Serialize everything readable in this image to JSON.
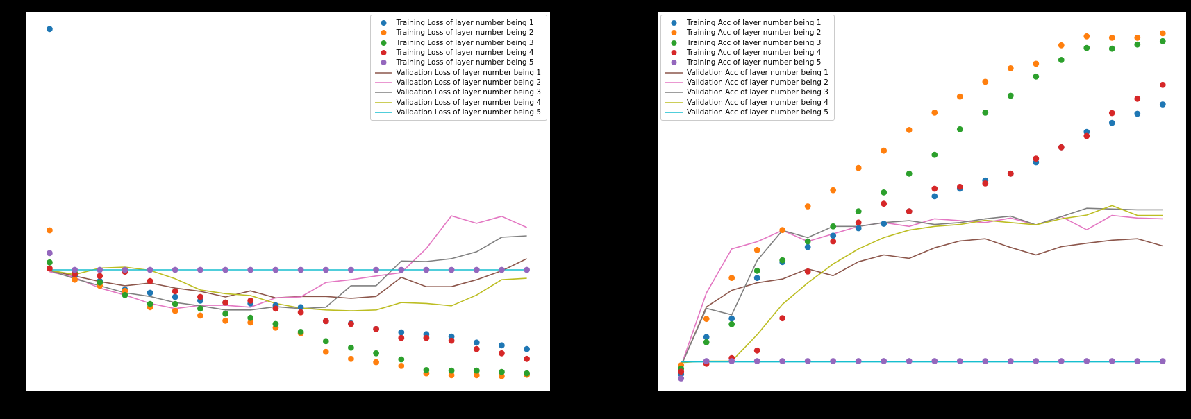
{
  "figure": {
    "background_color": "#000000",
    "plot_background_color": "#ffffff",
    "axis_spine_color": "#000000",
    "tick_labels_visible": false,
    "title": "",
    "xlabel": "",
    "ylabel": ""
  },
  "chart_data": [
    {
      "id": "training-validation-loss",
      "type": "scatter+line",
      "title": "",
      "xlabel": "",
      "ylabel": "",
      "legend_position": "upper right",
      "grid": false,
      "x": [
        0,
        1,
        2,
        3,
        4,
        5,
        6,
        7,
        8,
        9,
        10,
        11,
        12,
        13,
        14,
        15,
        16,
        17,
        18,
        19
      ],
      "ylim": [
        -0.32,
        7.84
      ],
      "xlim": [
        -0.95,
        19.95
      ],
      "series": [
        {
          "name": "Training Loss of layer number being 1",
          "type": "scatter",
          "color": "#1f77b4",
          "values": [
            7.47,
            2.18,
            2.06,
            1.88,
            1.81,
            1.72,
            1.64,
            1.6,
            1.58,
            1.54,
            1.5,
            1.2,
            1.15,
            1.03,
            0.96,
            0.92,
            0.87,
            0.74,
            0.68,
            0.6
          ]
        },
        {
          "name": "Training Loss of layer number being 2",
          "type": "scatter",
          "color": "#ff7f0e",
          "values": [
            3.15,
            2.09,
            1.96,
            1.85,
            1.5,
            1.42,
            1.32,
            1.21,
            1.17,
            1.06,
            0.94,
            0.54,
            0.39,
            0.32,
            0.24,
            0.08,
            0.04,
            0.04,
            0.02,
            0.05
          ]
        },
        {
          "name": "Training Loss of layer number being 3",
          "type": "scatter",
          "color": "#2ca02c",
          "values": [
            2.46,
            2.24,
            2.03,
            1.76,
            1.57,
            1.57,
            1.47,
            1.36,
            1.27,
            1.14,
            0.97,
            0.77,
            0.63,
            0.51,
            0.38,
            0.15,
            0.14,
            0.14,
            0.11,
            0.08
          ]
        },
        {
          "name": "Training Loss of layer number being 4",
          "type": "scatter",
          "color": "#d62728",
          "values": [
            2.33,
            2.21,
            2.17,
            2.26,
            2.06,
            1.84,
            1.72,
            1.6,
            1.64,
            1.47,
            1.39,
            1.2,
            1.14,
            1.03,
            0.84,
            0.84,
            0.78,
            0.6,
            0.51,
            0.39
          ]
        },
        {
          "name": "Training Loss of layer number being 5",
          "type": "scatter",
          "color": "#9467bd",
          "values": [
            2.66,
            2.3,
            2.3,
            2.3,
            2.3,
            2.3,
            2.3,
            2.3,
            2.3,
            2.3,
            2.3,
            2.3,
            2.3,
            2.3,
            2.3,
            2.3,
            2.3,
            2.3,
            2.3,
            2.3
          ]
        },
        {
          "name": "Validation Loss of layer number being 1",
          "type": "line",
          "color": "#8c564b",
          "values": [
            2.29,
            2.17,
            2.05,
            1.96,
            2.02,
            1.91,
            1.84,
            1.72,
            1.85,
            1.7,
            1.73,
            1.73,
            1.69,
            1.73,
            2.14,
            1.94,
            1.94,
            2.09,
            2.28,
            2.54
          ]
        },
        {
          "name": "Validation Loss of layer number being 2",
          "type": "line",
          "color": "#e377c2",
          "values": [
            2.26,
            2.14,
            1.91,
            1.76,
            1.58,
            1.47,
            1.54,
            1.54,
            1.5,
            1.7,
            1.72,
            2.03,
            2.09,
            2.17,
            2.24,
            2.76,
            3.46,
            3.3,
            3.45,
            3.21
          ]
        },
        {
          "name": "Validation Loss of layer number being 3",
          "type": "line",
          "color": "#7f7f7f",
          "values": [
            2.29,
            2.11,
            1.96,
            1.81,
            1.73,
            1.6,
            1.53,
            1.44,
            1.44,
            1.51,
            1.47,
            1.5,
            1.96,
            1.96,
            2.49,
            2.48,
            2.54,
            2.69,
            3.0,
            3.03
          ]
        },
        {
          "name": "Validation Loss of layer number being 4",
          "type": "line",
          "color": "#bcbd22",
          "values": [
            2.29,
            2.2,
            2.34,
            2.36,
            2.29,
            2.11,
            1.87,
            1.79,
            1.75,
            1.58,
            1.48,
            1.44,
            1.42,
            1.44,
            1.6,
            1.58,
            1.53,
            1.76,
            2.09,
            2.12
          ]
        },
        {
          "name": "Validation Loss of layer number being 5",
          "type": "line",
          "color": "#17becf",
          "values": [
            2.3,
            2.3,
            2.3,
            2.3,
            2.3,
            2.3,
            2.3,
            2.3,
            2.3,
            2.3,
            2.3,
            2.3,
            2.3,
            2.3,
            2.3,
            2.3,
            2.3,
            2.3,
            2.3,
            2.3
          ]
        }
      ]
    },
    {
      "id": "training-validation-accuracy",
      "type": "scatter+line",
      "title": "",
      "xlabel": "",
      "ylabel": "",
      "legend_position": "upper left",
      "grid": false,
      "x": [
        0,
        1,
        2,
        3,
        4,
        5,
        6,
        7,
        8,
        9,
        10,
        11,
        12,
        13,
        14,
        15,
        16,
        17,
        18,
        19
      ],
      "ylim": [
        0.02,
        1.03
      ],
      "xlim": [
        -0.95,
        19.95
      ],
      "series": [
        {
          "name": "Training Acc of layer number being 1",
          "type": "scatter",
          "color": "#1f77b4",
          "values": [
            0.067,
            0.166,
            0.215,
            0.323,
            0.365,
            0.405,
            0.435,
            0.455,
            0.467,
            0.5,
            0.54,
            0.56,
            0.582,
            0.6,
            0.63,
            0.67,
            0.711,
            0.735,
            0.759,
            0.784
          ]
        },
        {
          "name": "Training Acc of layer number being 2",
          "type": "scatter",
          "color": "#ff7f0e",
          "values": [
            0.091,
            0.214,
            0.323,
            0.397,
            0.45,
            0.513,
            0.556,
            0.615,
            0.661,
            0.716,
            0.762,
            0.805,
            0.844,
            0.88,
            0.892,
            0.941,
            0.965,
            0.961,
            0.961,
            0.973
          ]
        },
        {
          "name": "Training Acc of layer number being 3",
          "type": "scatter",
          "color": "#2ca02c",
          "values": [
            0.082,
            0.152,
            0.2,
            0.342,
            0.37,
            0.42,
            0.46,
            0.5,
            0.55,
            0.6,
            0.65,
            0.718,
            0.762,
            0.807,
            0.858,
            0.902,
            0.934,
            0.932,
            0.943,
            0.952
          ]
        },
        {
          "name": "Training Acc of layer number being 4",
          "type": "scatter",
          "color": "#d62728",
          "values": [
            0.074,
            0.095,
            0.11,
            0.13,
            0.216,
            0.34,
            0.42,
            0.47,
            0.52,
            0.5,
            0.56,
            0.565,
            0.574,
            0.6,
            0.64,
            0.67,
            0.7,
            0.761,
            0.799,
            0.836
          ]
        },
        {
          "name": "Training Acc of layer number being 5",
          "type": "scatter",
          "color": "#9467bd",
          "values": [
            0.056,
            0.102,
            0.102,
            0.102,
            0.102,
            0.102,
            0.102,
            0.102,
            0.102,
            0.102,
            0.102,
            0.102,
            0.102,
            0.102,
            0.102,
            0.102,
            0.102,
            0.102,
            0.102,
            0.102
          ]
        },
        {
          "name": "Validation Acc of layer number being 1",
          "type": "line",
          "color": "#8c564b",
          "values": [
            0.089,
            0.246,
            0.29,
            0.31,
            0.32,
            0.347,
            0.329,
            0.366,
            0.384,
            0.375,
            0.403,
            0.421,
            0.427,
            0.404,
            0.384,
            0.406,
            0.415,
            0.423,
            0.427,
            0.408
          ]
        },
        {
          "name": "Validation Acc of layer number being 2",
          "type": "line",
          "color": "#e377c2",
          "values": [
            0.089,
            0.283,
            0.4,
            0.419,
            0.449,
            0.42,
            0.44,
            0.46,
            0.47,
            0.46,
            0.48,
            0.475,
            0.47,
            0.482,
            0.464,
            0.486,
            0.451,
            0.489,
            0.482,
            0.48
          ]
        },
        {
          "name": "Validation Acc of layer number being 3",
          "type": "line",
          "color": "#7f7f7f",
          "values": [
            0.089,
            0.242,
            0.225,
            0.369,
            0.449,
            0.43,
            0.46,
            0.46,
            0.47,
            0.475,
            0.465,
            0.47,
            0.48,
            0.487,
            0.464,
            0.486,
            0.508,
            0.506,
            0.504,
            0.504
          ]
        },
        {
          "name": "Validation Acc of layer number being 4",
          "type": "line",
          "color": "#bcbd22",
          "values": [
            0.098,
            0.102,
            0.102,
            0.172,
            0.253,
            0.31,
            0.36,
            0.4,
            0.43,
            0.45,
            0.46,
            0.465,
            0.476,
            0.47,
            0.464,
            0.48,
            0.49,
            0.515,
            0.489,
            0.489
          ]
        },
        {
          "name": "Validation Acc of layer number being 5",
          "type": "line",
          "color": "#17becf",
          "values": [
            0.1,
            0.1,
            0.1,
            0.1,
            0.1,
            0.1,
            0.1,
            0.1,
            0.1,
            0.1,
            0.1,
            0.1,
            0.1,
            0.1,
            0.1,
            0.1,
            0.1,
            0.1,
            0.1,
            0.1
          ]
        }
      ]
    }
  ]
}
